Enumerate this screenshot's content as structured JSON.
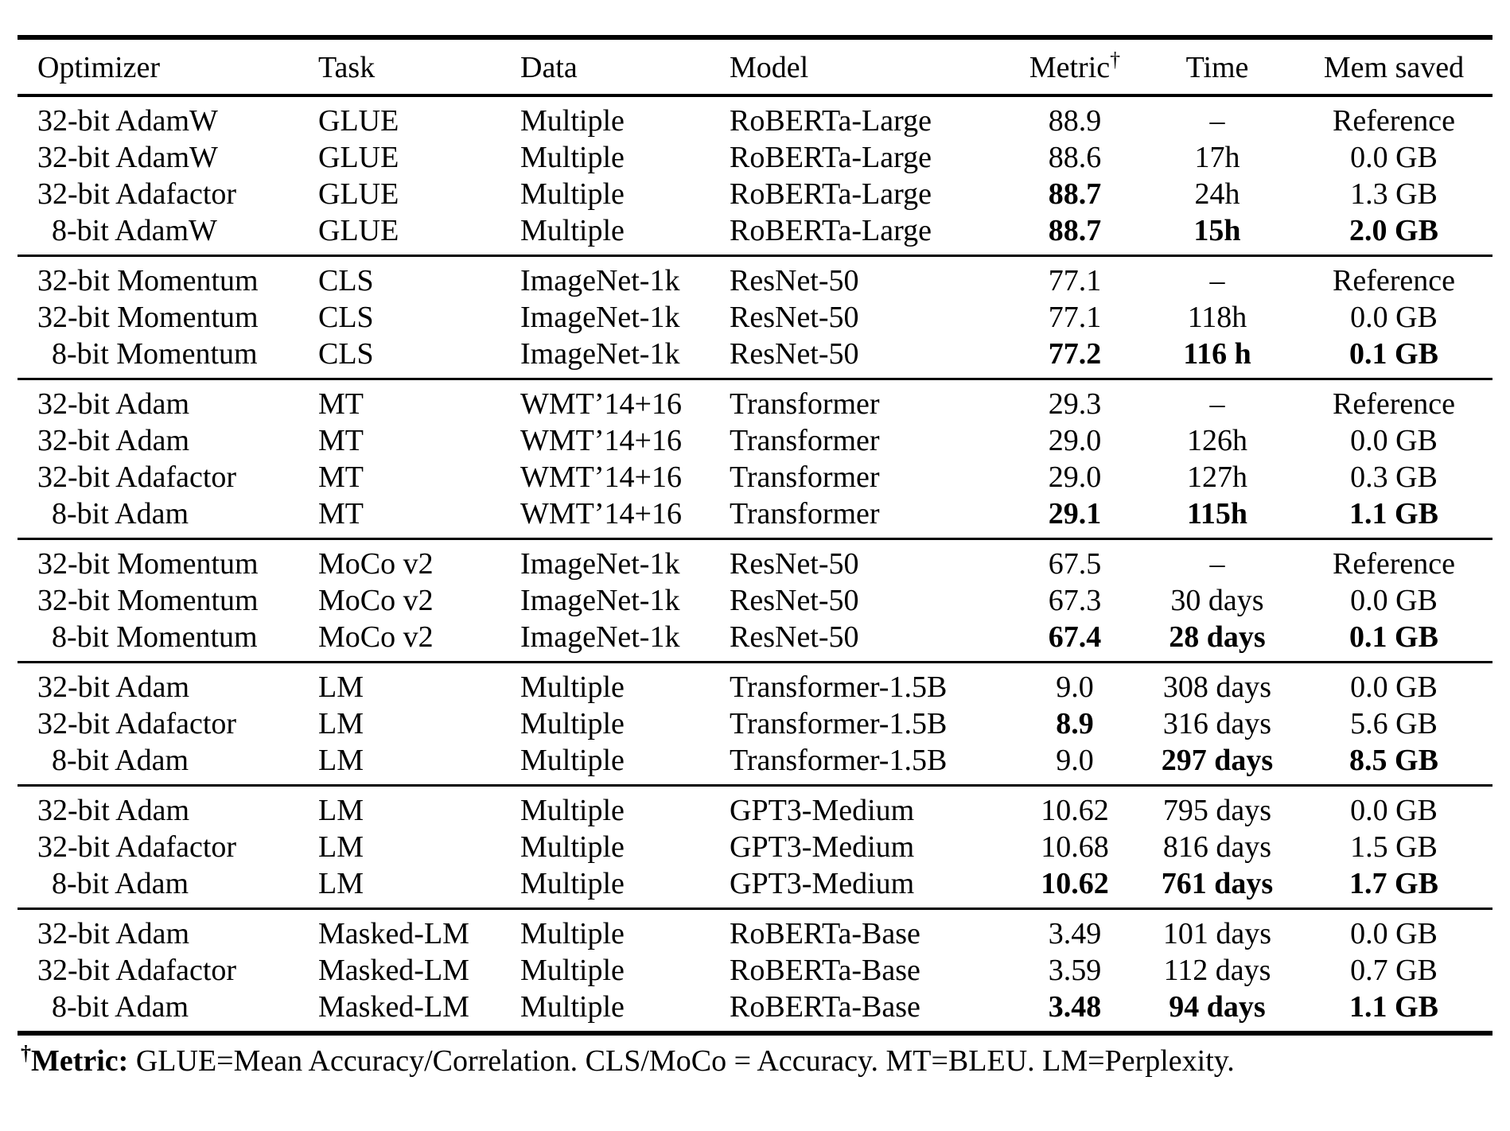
{
  "table": {
    "columns": [
      "Optimizer",
      "Task",
      "Data",
      "Model",
      "Metric",
      "Time",
      "Mem saved"
    ],
    "metric_dagger": "†",
    "groups": [
      {
        "id": "glue",
        "rows": [
          {
            "optimizer": "32-bit AdamW",
            "indent": false,
            "task": "GLUE",
            "data": "Multiple",
            "model": "RoBERTa-Large",
            "metric": "88.9",
            "time": "–",
            "mem": "Reference",
            "bold": []
          },
          {
            "optimizer": "32-bit AdamW",
            "indent": false,
            "task": "GLUE",
            "data": "Multiple",
            "model": "RoBERTa-Large",
            "metric": "88.6",
            "time": "17h",
            "mem": "0.0 GB",
            "bold": []
          },
          {
            "optimizer": "32-bit Adafactor",
            "indent": false,
            "task": "GLUE",
            "data": "Multiple",
            "model": "RoBERTa-Large",
            "metric": "88.7",
            "time": "24h",
            "mem": "1.3 GB",
            "bold": [
              "metric"
            ]
          },
          {
            "optimizer": "8-bit AdamW",
            "indent": true,
            "task": "GLUE",
            "data": "Multiple",
            "model": "RoBERTa-Large",
            "metric": "88.7",
            "time": "15h",
            "mem": "2.0 GB",
            "bold": [
              "metric",
              "time",
              "mem"
            ]
          }
        ]
      },
      {
        "id": "cls",
        "rows": [
          {
            "optimizer": "32-bit Momentum",
            "indent": false,
            "task": "CLS",
            "data": "ImageNet-1k",
            "model": "ResNet-50",
            "metric": "77.1",
            "time": "–",
            "mem": "Reference",
            "bold": []
          },
          {
            "optimizer": "32-bit Momentum",
            "indent": false,
            "task": "CLS",
            "data": "ImageNet-1k",
            "model": "ResNet-50",
            "metric": "77.1",
            "time": "118h",
            "mem": "0.0 GB",
            "bold": []
          },
          {
            "optimizer": "8-bit Momentum",
            "indent": true,
            "task": "CLS",
            "data": "ImageNet-1k",
            "model": "ResNet-50",
            "metric": "77.2",
            "time": "116 h",
            "mem": "0.1 GB",
            "bold": [
              "metric",
              "time",
              "mem"
            ]
          }
        ]
      },
      {
        "id": "mt",
        "rows": [
          {
            "optimizer": "32-bit Adam",
            "indent": false,
            "task": "MT",
            "data": "WMT’14+16",
            "model": "Transformer",
            "metric": "29.3",
            "time": "–",
            "mem": "Reference",
            "bold": []
          },
          {
            "optimizer": "32-bit Adam",
            "indent": false,
            "task": "MT",
            "data": "WMT’14+16",
            "model": "Transformer",
            "metric": "29.0",
            "time": "126h",
            "mem": "0.0 GB",
            "bold": []
          },
          {
            "optimizer": "32-bit Adafactor",
            "indent": false,
            "task": "MT",
            "data": "WMT’14+16",
            "model": "Transformer",
            "metric": "29.0",
            "time": "127h",
            "mem": "0.3 GB",
            "bold": []
          },
          {
            "optimizer": "8-bit Adam",
            "indent": true,
            "task": "MT",
            "data": "WMT’14+16",
            "model": "Transformer",
            "metric": "29.1",
            "time": "115h",
            "mem": "1.1 GB",
            "bold": [
              "metric",
              "time",
              "mem"
            ]
          }
        ]
      },
      {
        "id": "moco",
        "rows": [
          {
            "optimizer": "32-bit Momentum",
            "indent": false,
            "task": "MoCo v2",
            "data": "ImageNet-1k",
            "model": "ResNet-50",
            "metric": "67.5",
            "time": "–",
            "mem": "Reference",
            "bold": []
          },
          {
            "optimizer": "32-bit Momentum",
            "indent": false,
            "task": "MoCo v2",
            "data": "ImageNet-1k",
            "model": "ResNet-50",
            "metric": "67.3",
            "time": "30 days",
            "mem": "0.0 GB",
            "bold": []
          },
          {
            "optimizer": "8-bit Momentum",
            "indent": true,
            "task": "MoCo v2",
            "data": "ImageNet-1k",
            "model": "ResNet-50",
            "metric": "67.4",
            "time": "28 days",
            "mem": "0.1 GB",
            "bold": [
              "metric",
              "time",
              "mem"
            ]
          }
        ]
      },
      {
        "id": "lm-transformer-1-5b",
        "rows": [
          {
            "optimizer": "32-bit Adam",
            "indent": false,
            "task": "LM",
            "data": "Multiple",
            "model": "Transformer-1.5B",
            "metric": "9.0",
            "time": "308 days",
            "mem": "0.0 GB",
            "bold": []
          },
          {
            "optimizer": "32-bit Adafactor",
            "indent": false,
            "task": "LM",
            "data": "Multiple",
            "model": "Transformer-1.5B",
            "metric": "8.9",
            "time": "316 days",
            "mem": "5.6 GB",
            "bold": [
              "metric"
            ]
          },
          {
            "optimizer": "8-bit Adam",
            "indent": true,
            "task": "LM",
            "data": "Multiple",
            "model": "Transformer-1.5B",
            "metric": "9.0",
            "time": "297 days",
            "mem": "8.5 GB",
            "bold": [
              "time",
              "mem"
            ]
          }
        ]
      },
      {
        "id": "lm-gpt3-medium",
        "rows": [
          {
            "optimizer": "32-bit Adam",
            "indent": false,
            "task": "LM",
            "data": "Multiple",
            "model": "GPT3-Medium",
            "metric": "10.62",
            "time": "795 days",
            "mem": "0.0 GB",
            "bold": []
          },
          {
            "optimizer": "32-bit Adafactor",
            "indent": false,
            "task": "LM",
            "data": "Multiple",
            "model": "GPT3-Medium",
            "metric": "10.68",
            "time": "816 days",
            "mem": "1.5 GB",
            "bold": []
          },
          {
            "optimizer": "8-bit Adam",
            "indent": true,
            "task": "LM",
            "data": "Multiple",
            "model": "GPT3-Medium",
            "metric": "10.62",
            "time": "761 days",
            "mem": "1.7 GB",
            "bold": [
              "metric",
              "time",
              "mem"
            ]
          }
        ]
      },
      {
        "id": "masked-lm",
        "rows": [
          {
            "optimizer": "32-bit Adam",
            "indent": false,
            "task": "Masked-LM",
            "data": "Multiple",
            "model": "RoBERTa-Base",
            "metric": "3.49",
            "time": "101 days",
            "mem": "0.0 GB",
            "bold": []
          },
          {
            "optimizer": "32-bit Adafactor",
            "indent": false,
            "task": "Masked-LM",
            "data": "Multiple",
            "model": "RoBERTa-Base",
            "metric": "3.59",
            "time": "112 days",
            "mem": "0.7 GB",
            "bold": []
          },
          {
            "optimizer": "8-bit Adam",
            "indent": true,
            "task": "Masked-LM",
            "data": "Multiple",
            "model": "RoBERTa-Base",
            "metric": "3.48",
            "time": "94 days",
            "mem": "1.1 GB",
            "bold": [
              "metric",
              "time",
              "mem"
            ]
          }
        ]
      }
    ]
  },
  "footnote": {
    "dagger": "†",
    "label": "Metric:",
    "text": " GLUE=Mean Accuracy/Correlation. CLS/MoCo = Accuracy. MT=BLEU. LM=Perplexity."
  }
}
